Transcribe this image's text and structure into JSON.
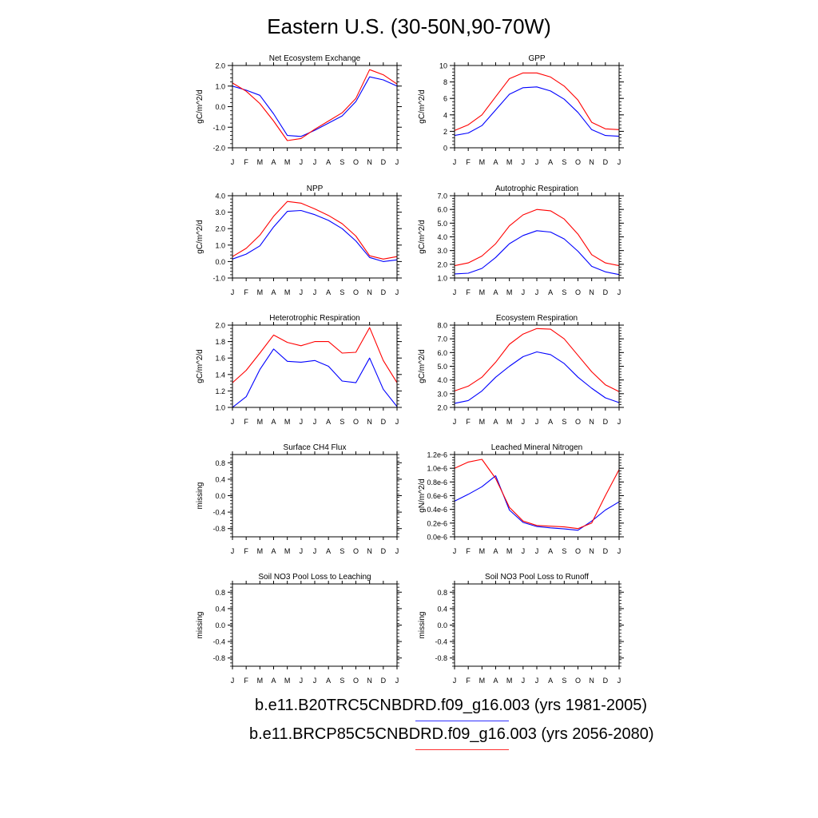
{
  "figure_title": "Eastern U.S. (30-50N,90-70W)",
  "months": [
    "J",
    "F",
    "M",
    "A",
    "M",
    "J",
    "J",
    "A",
    "S",
    "O",
    "N",
    "D",
    "J"
  ],
  "legend": [
    {
      "label": "b.e11.B20TRC5CNBDRD.f09_g16.003 (yrs 1981-2005)",
      "color": "#3030ff"
    },
    {
      "label": "b.e11.BRCP85C5CNBDRD.f09_g16.003 (yrs 2056-2080)",
      "color": "#ff3030"
    }
  ],
  "colors": {
    "series_1": "#0000ff",
    "series_2": "#ff0000"
  },
  "chart_data": [
    {
      "type": "line",
      "title": "Net Ecosystem Exchange",
      "ylabel": "gC/m^2/d",
      "ylim": [
        -2,
        2
      ],
      "yticks": [
        -2,
        -1,
        0,
        1,
        2
      ],
      "yticklabels": [
        "-2.0",
        "-1.0",
        "0.0",
        "1.0",
        "2.0"
      ],
      "series": [
        {
          "values": [
            1.0,
            0.8,
            0.55,
            -0.35,
            -1.4,
            -1.45,
            -1.15,
            -0.8,
            -0.45,
            0.25,
            1.45,
            1.3,
            1.0
          ]
        },
        {
          "values": [
            1.15,
            0.75,
            0.15,
            -0.7,
            -1.65,
            -1.55,
            -1.1,
            -0.7,
            -0.3,
            0.4,
            1.8,
            1.55,
            1.1
          ]
        }
      ]
    },
    {
      "type": "line",
      "title": "GPP",
      "ylabel": "gC/m^2/d",
      "ylim": [
        0,
        10
      ],
      "yticks": [
        0,
        2,
        4,
        6,
        8,
        10
      ],
      "yticklabels": [
        "0",
        "2",
        "4",
        "6",
        "8",
        "10"
      ],
      "series": [
        {
          "values": [
            1.5,
            1.8,
            2.7,
            4.6,
            6.5,
            7.3,
            7.4,
            6.9,
            5.9,
            4.3,
            2.2,
            1.5,
            1.4
          ]
        },
        {
          "values": [
            2.1,
            2.8,
            4.0,
            6.2,
            8.4,
            9.1,
            9.1,
            8.6,
            7.5,
            5.8,
            3.1,
            2.3,
            2.2
          ]
        }
      ]
    },
    {
      "type": "line",
      "title": "NPP",
      "ylabel": "gC/m^2/d",
      "ylim": [
        -1,
        4
      ],
      "yticks": [
        -1,
        0,
        1,
        2,
        3,
        4
      ],
      "yticklabels": [
        "-1.0",
        "0.0",
        "1.0",
        "2.0",
        "3.0",
        "4.0"
      ],
      "series": [
        {
          "values": [
            0.15,
            0.45,
            0.95,
            2.1,
            3.05,
            3.1,
            2.85,
            2.5,
            2.0,
            1.25,
            0.25,
            0.0,
            0.1
          ]
        },
        {
          "values": [
            0.3,
            0.8,
            1.6,
            2.75,
            3.65,
            3.55,
            3.2,
            2.8,
            2.3,
            1.55,
            0.35,
            0.15,
            0.3
          ]
        }
      ]
    },
    {
      "type": "line",
      "title": "Autotrophic Respiration",
      "ylabel": "gC/m^2/d",
      "ylim": [
        1,
        7
      ],
      "yticks": [
        1,
        2,
        3,
        4,
        5,
        6,
        7
      ],
      "yticklabels": [
        "1.0",
        "2.0",
        "3.0",
        "4.0",
        "5.0",
        "6.0",
        "7.0"
      ],
      "series": [
        {
          "values": [
            1.3,
            1.35,
            1.7,
            2.5,
            3.5,
            4.1,
            4.45,
            4.35,
            3.85,
            2.95,
            1.85,
            1.45,
            1.25
          ]
        },
        {
          "values": [
            1.9,
            2.1,
            2.6,
            3.5,
            4.8,
            5.6,
            6.0,
            5.9,
            5.3,
            4.2,
            2.7,
            2.1,
            1.9
          ]
        }
      ]
    },
    {
      "type": "line",
      "title": "Heterotrophic Respiration",
      "ylabel": "gC/m^2/d",
      "ylim": [
        1.0,
        2.0
      ],
      "yticks": [
        1.0,
        1.2,
        1.4,
        1.6,
        1.8,
        2.0
      ],
      "yticklabels": [
        "1.0",
        "1.2",
        "1.4",
        "1.6",
        "1.8",
        "2.0"
      ],
      "series": [
        {
          "values": [
            1.0,
            1.13,
            1.46,
            1.71,
            1.56,
            1.55,
            1.57,
            1.5,
            1.32,
            1.3,
            1.6,
            1.22,
            1.01
          ]
        },
        {
          "values": [
            1.3,
            1.45,
            1.66,
            1.88,
            1.79,
            1.75,
            1.8,
            1.8,
            1.66,
            1.67,
            1.97,
            1.57,
            1.3
          ]
        }
      ]
    },
    {
      "type": "line",
      "title": "Ecosystem Respiration",
      "ylabel": "gC/m^2/d",
      "ylim": [
        2,
        8
      ],
      "yticks": [
        2,
        3,
        4,
        5,
        6,
        7,
        8
      ],
      "yticklabels": [
        "2.0",
        "3.0",
        "4.0",
        "5.0",
        "6.0",
        "7.0",
        "8.0"
      ],
      "series": [
        {
          "values": [
            2.3,
            2.5,
            3.2,
            4.2,
            5.0,
            5.7,
            6.05,
            5.85,
            5.2,
            4.2,
            3.4,
            2.7,
            2.35
          ]
        },
        {
          "values": [
            3.2,
            3.55,
            4.2,
            5.3,
            6.6,
            7.35,
            7.75,
            7.7,
            7.0,
            5.8,
            4.6,
            3.65,
            3.15
          ]
        }
      ]
    },
    {
      "type": "line",
      "title": "Surface CH4 Flux",
      "ylabel": "missing",
      "ylim": [
        -1,
        1
      ],
      "yticks": [
        -0.8,
        -0.4,
        0,
        0.4,
        0.8
      ],
      "yticklabels": [
        "-0.8",
        "-0.4",
        "0.0",
        "0.4",
        "0.8"
      ],
      "series": []
    },
    {
      "type": "line",
      "title": "Leached Mineral Nitrogen",
      "ylabel": "gN/m^2/d",
      "ylim": [
        0,
        1.2e-06
      ],
      "yticks": [
        0,
        2e-07,
        4e-07,
        6e-07,
        8e-07,
        1e-06,
        1.2e-06
      ],
      "yticklabels": [
        "0.0e-6",
        "0.2e-6",
        "0.4e-6",
        "0.6e-6",
        "0.8e-6",
        "1.0e-6",
        "1.2e-6"
      ],
      "series": [
        {
          "values": [
            5.2e-07,
            6.2e-07,
            7.3e-07,
            8.9e-07,
            3.9e-07,
            2.1e-07,
            1.5e-07,
            1.3e-07,
            1.15e-07,
            9.5e-08,
            2.3e-07,
            3.9e-07,
            5.1e-07
          ]
        },
        {
          "values": [
            1e-06,
            1.09e-06,
            1.13e-06,
            8.5e-07,
            4.3e-07,
            2.3e-07,
            1.65e-07,
            1.55e-07,
            1.45e-07,
            1.2e-07,
            2e-07,
            6e-07,
            9.8e-07
          ]
        }
      ]
    },
    {
      "type": "line",
      "title": "Soil NO3 Pool Loss to Leaching",
      "ylabel": "missing",
      "ylim": [
        -1,
        1
      ],
      "yticks": [
        -0.8,
        -0.4,
        0,
        0.4,
        0.8
      ],
      "yticklabels": [
        "-0.8",
        "-0.4",
        "0.0",
        "0.4",
        "0.8"
      ],
      "series": []
    },
    {
      "type": "line",
      "title": "Soil NO3 Pool Loss to Runoff",
      "ylabel": "missing",
      "ylim": [
        -1,
        1
      ],
      "yticks": [
        -0.8,
        -0.4,
        0,
        0.4,
        0.8
      ],
      "yticklabels": [
        "-0.8",
        "-0.4",
        "0.0",
        "0.4",
        "0.8"
      ],
      "series": []
    }
  ]
}
